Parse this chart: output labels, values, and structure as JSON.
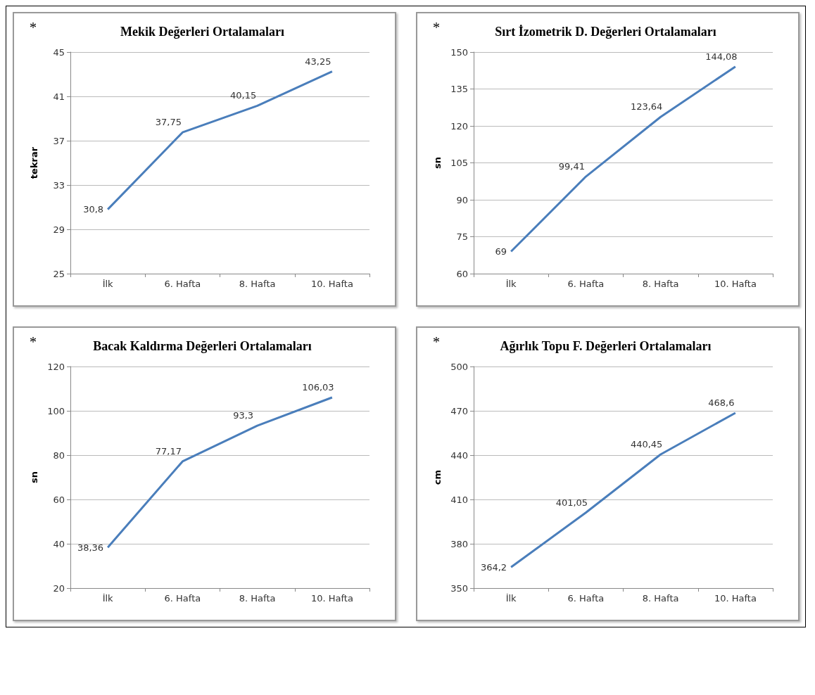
{
  "chart_data": [
    {
      "type": "line",
      "title": "Mekik Değerleri Ortalamaları",
      "annotations": [
        "*"
      ],
      "ylabel": "tekrar",
      "categories": [
        "İlk",
        "6. Hafta",
        "8. Hafta",
        "10. Hafta"
      ],
      "series": [
        {
          "color": "#4a7ebb",
          "values": [
            30.8,
            37.75,
            40.15,
            43.25
          ],
          "value_labels": [
            "30,8",
            "37,75",
            "40,15",
            "43,25"
          ]
        }
      ],
      "ylim": [
        25,
        45
      ],
      "yticks": [
        25,
        29,
        33,
        37,
        41,
        45
      ],
      "grid": "y",
      "marker": "none"
    },
    {
      "type": "line",
      "title": "Sırt İzometrik D. Değerleri Ortalamaları",
      "annotations": [
        "*"
      ],
      "ylabel": "sn",
      "categories": [
        "İlk",
        "6. Hafta",
        "8. Hafta",
        "10. Hafta"
      ],
      "series": [
        {
          "color": "#4a7ebb",
          "values": [
            69,
            99.41,
            123.64,
            144.08
          ],
          "value_labels": [
            "69",
            "99,41",
            "123,64",
            "144,08"
          ]
        }
      ],
      "ylim": [
        60,
        150
      ],
      "yticks": [
        60,
        75,
        90,
        105,
        120,
        135,
        150
      ],
      "grid": "y",
      "marker": "none"
    },
    {
      "type": "line",
      "title": "Bacak Kaldırma Değerleri Ortalamaları",
      "annotations": [
        "*"
      ],
      "ylabel": "sn",
      "categories": [
        "İlk",
        "6. Hafta",
        "8. Hafta",
        "10. Hafta"
      ],
      "series": [
        {
          "color": "#4a7ebb",
          "values": [
            38.36,
            77.17,
            93.3,
            106.03
          ],
          "value_labels": [
            "38,36",
            "77,17",
            "93,3",
            "106,03"
          ]
        }
      ],
      "ylim": [
        20,
        120
      ],
      "yticks": [
        20,
        40,
        60,
        80,
        100,
        120
      ],
      "grid": "y",
      "marker": "none"
    },
    {
      "type": "line",
      "title": "Ağırlık Topu F. Değerleri Ortalamaları",
      "annotations": [
        "*"
      ],
      "ylabel": "cm",
      "categories": [
        "İlk",
        "6. Hafta",
        "8. Hafta",
        "10. Hafta"
      ],
      "series": [
        {
          "color": "#4a7ebb",
          "values": [
            364.2,
            401.05,
            440.45,
            468.6
          ],
          "value_labels": [
            "364,2",
            "401,05",
            "440,45",
            "468,6"
          ]
        }
      ],
      "ylim": [
        350,
        500
      ],
      "yticks": [
        350,
        380,
        410,
        440,
        470,
        500
      ],
      "grid": "y",
      "marker": "none"
    }
  ]
}
